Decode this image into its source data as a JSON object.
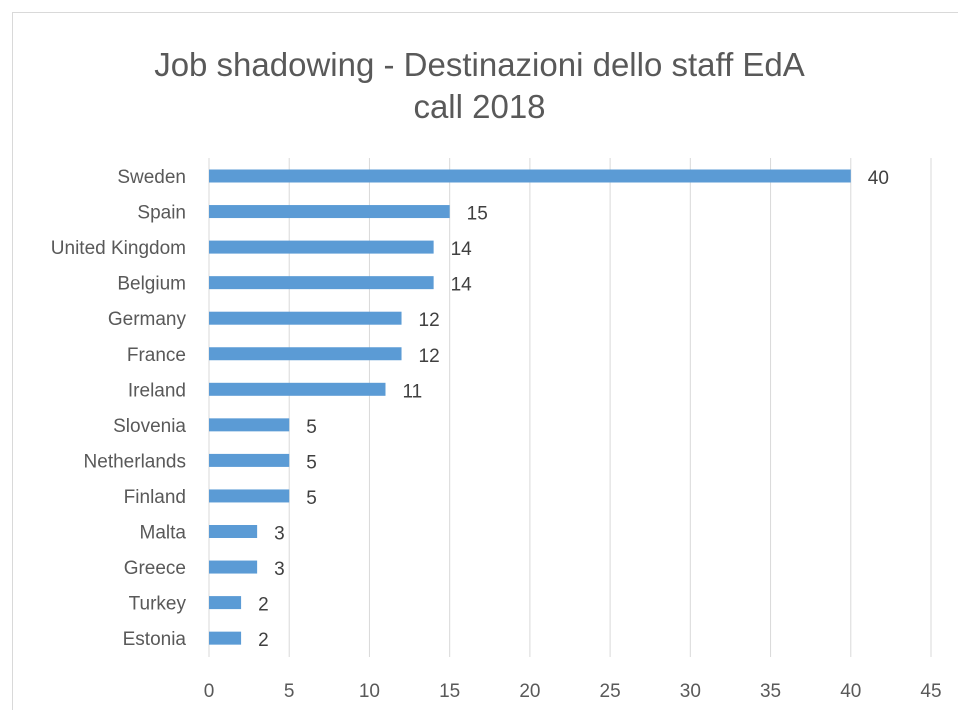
{
  "chart_data": {
    "type": "bar",
    "orientation": "horizontal",
    "title_lines": [
      "Job shadowing - Destinazioni dello staff EdA",
      "call 2018"
    ],
    "categories": [
      "Sweden",
      "Spain",
      "United Kingdom",
      "Belgium",
      "Germany",
      "France",
      "Ireland",
      "Slovenia",
      "Netherlands",
      "Finland",
      "Malta",
      "Greece",
      "Turkey",
      "Estonia"
    ],
    "values": [
      40,
      15,
      14,
      14,
      12,
      12,
      11,
      5,
      5,
      5,
      3,
      3,
      2,
      2
    ],
    "xlim": [
      0,
      45
    ],
    "x_ticks": [
      "0",
      "5",
      "10",
      "15",
      "20",
      "25",
      "30",
      "35",
      "40",
      "45"
    ],
    "grid": "vertical",
    "legend": "none",
    "data_labels": true,
    "bar_color": "#5b9bd5",
    "grid_color": "#d9d9d9",
    "text_color": "#595959"
  }
}
